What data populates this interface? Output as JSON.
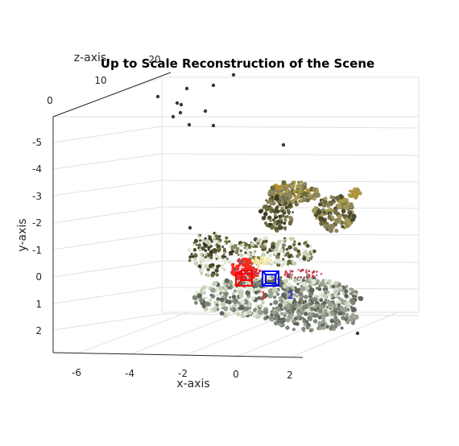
{
  "chart_data": {
    "type": "scatter",
    "title": "Up to Scale Reconstruction of the Scene",
    "xlabel": "x-axis",
    "ylabel": "y-axis",
    "zlabel": "z-axis",
    "x_ticks": [
      "-6",
      "-4",
      "-2",
      "0",
      "2"
    ],
    "y_ticks": [
      "-5",
      "-4",
      "-3",
      "-2",
      "-1",
      "0",
      "1",
      "2"
    ],
    "z_ticks": [
      "0",
      "10",
      "20"
    ],
    "grid": true,
    "cameras": [
      {
        "label": "1",
        "color": "#ff0000"
      },
      {
        "label": "2",
        "color": "#0000ff"
      }
    ],
    "point_cloud_colors": [
      "#3a3a24",
      "#4d4a2e",
      "#6b6a3c",
      "#8a8560",
      "#a89a50",
      "#b3912f",
      "#c6d0b6",
      "#dfe8d6",
      "#9aa292",
      "#7e8477",
      "#5f655a",
      "#c23a4a",
      "#ff2a1a",
      "#f2e8a0"
    ]
  }
}
